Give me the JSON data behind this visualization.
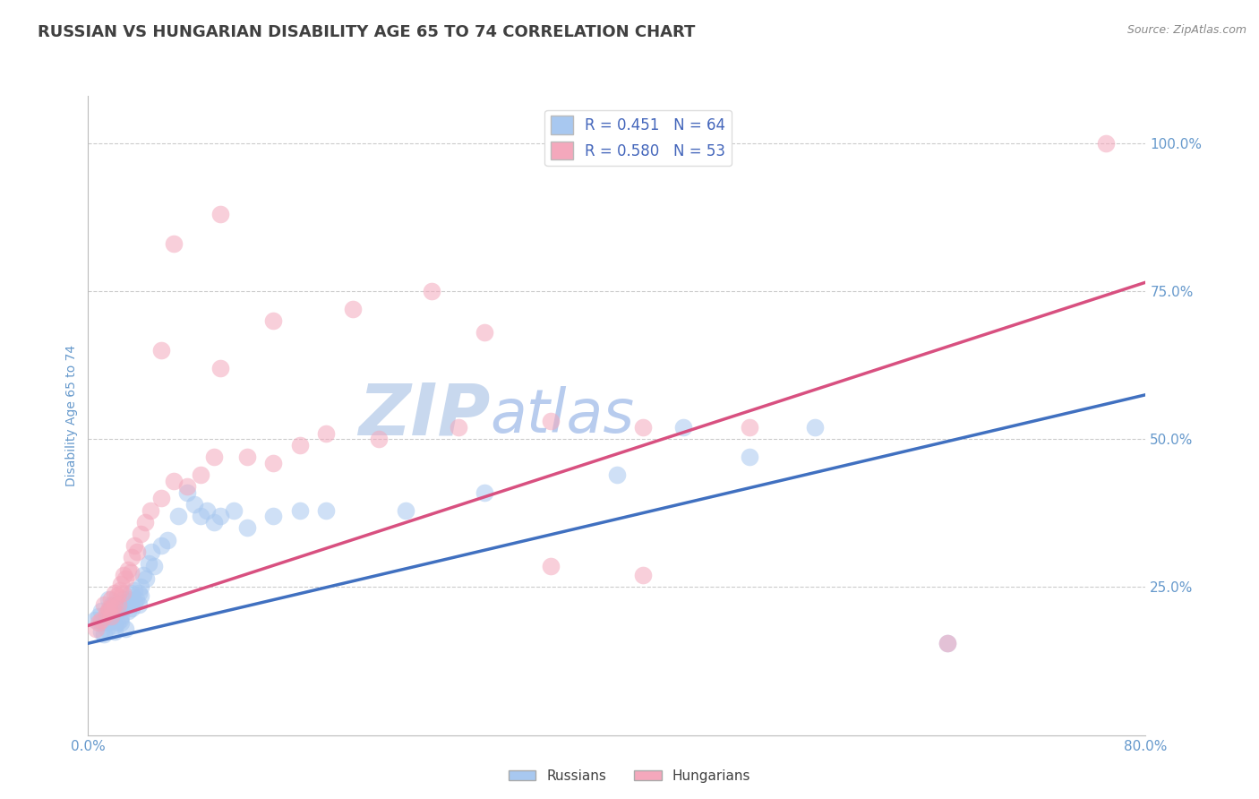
{
  "title": "RUSSIAN VS HUNGARIAN DISABILITY AGE 65 TO 74 CORRELATION CHART",
  "source_text": "Source: ZipAtlas.com",
  "ylabel_label": "Disability Age 65 to 74",
  "ylabel_ticks": [
    0.0,
    0.25,
    0.5,
    0.75,
    1.0
  ],
  "ylabel_tick_labels": [
    "",
    "25.0%",
    "50.0%",
    "75.0%",
    "100.0%"
  ],
  "xlim": [
    0.0,
    0.8
  ],
  "ylim": [
    0.12,
    1.08
  ],
  "russian_R": 0.451,
  "russian_N": 64,
  "hungarian_R": 0.58,
  "hungarian_N": 53,
  "russian_color": "#A8C8F0",
  "hungarian_color": "#F4A8BC",
  "russian_line_color": "#4070C0",
  "hungarian_line_color": "#D85080",
  "legend_R_color": "#4466BB",
  "watermark_zip": "ZIP",
  "watermark_atlas": "atlas",
  "watermark_color_zip": "#C8D8EE",
  "watermark_color_atlas": "#B8CCE8",
  "background_color": "#FFFFFF",
  "grid_color": "#CCCCCC",
  "title_color": "#404040",
  "axis_label_color": "#6699CC",
  "russians_scatter": [
    [
      0.005,
      0.195
    ],
    [
      0.008,
      0.2
    ],
    [
      0.01,
      0.175
    ],
    [
      0.01,
      0.19
    ],
    [
      0.01,
      0.21
    ],
    [
      0.012,
      0.17
    ],
    [
      0.014,
      0.18
    ],
    [
      0.015,
      0.19
    ],
    [
      0.015,
      0.21
    ],
    [
      0.015,
      0.23
    ],
    [
      0.017,
      0.195
    ],
    [
      0.018,
      0.2
    ],
    [
      0.018,
      0.22
    ],
    [
      0.02,
      0.175
    ],
    [
      0.02,
      0.185
    ],
    [
      0.02,
      0.2
    ],
    [
      0.022,
      0.19
    ],
    [
      0.022,
      0.21
    ],
    [
      0.023,
      0.22
    ],
    [
      0.024,
      0.195
    ],
    [
      0.025,
      0.19
    ],
    [
      0.025,
      0.2
    ],
    [
      0.026,
      0.215
    ],
    [
      0.027,
      0.23
    ],
    [
      0.028,
      0.18
    ],
    [
      0.028,
      0.225
    ],
    [
      0.03,
      0.21
    ],
    [
      0.03,
      0.23
    ],
    [
      0.032,
      0.22
    ],
    [
      0.032,
      0.24
    ],
    [
      0.033,
      0.215
    ],
    [
      0.035,
      0.225
    ],
    [
      0.035,
      0.245
    ],
    [
      0.036,
      0.23
    ],
    [
      0.038,
      0.22
    ],
    [
      0.038,
      0.24
    ],
    [
      0.04,
      0.235
    ],
    [
      0.04,
      0.25
    ],
    [
      0.042,
      0.27
    ],
    [
      0.044,
      0.265
    ],
    [
      0.046,
      0.29
    ],
    [
      0.048,
      0.31
    ],
    [
      0.05,
      0.285
    ],
    [
      0.055,
      0.32
    ],
    [
      0.06,
      0.33
    ],
    [
      0.068,
      0.37
    ],
    [
      0.075,
      0.41
    ],
    [
      0.08,
      0.39
    ],
    [
      0.085,
      0.37
    ],
    [
      0.09,
      0.38
    ],
    [
      0.095,
      0.36
    ],
    [
      0.1,
      0.37
    ],
    [
      0.11,
      0.38
    ],
    [
      0.12,
      0.35
    ],
    [
      0.14,
      0.37
    ],
    [
      0.16,
      0.38
    ],
    [
      0.18,
      0.38
    ],
    [
      0.24,
      0.38
    ],
    [
      0.3,
      0.41
    ],
    [
      0.4,
      0.44
    ],
    [
      0.45,
      0.52
    ],
    [
      0.5,
      0.47
    ],
    [
      0.55,
      0.52
    ],
    [
      0.65,
      0.155
    ]
  ],
  "hungarians_scatter": [
    [
      0.006,
      0.18
    ],
    [
      0.008,
      0.19
    ],
    [
      0.01,
      0.195
    ],
    [
      0.012,
      0.22
    ],
    [
      0.014,
      0.205
    ],
    [
      0.015,
      0.21
    ],
    [
      0.016,
      0.215
    ],
    [
      0.017,
      0.2
    ],
    [
      0.017,
      0.23
    ],
    [
      0.018,
      0.215
    ],
    [
      0.02,
      0.22
    ],
    [
      0.02,
      0.24
    ],
    [
      0.022,
      0.235
    ],
    [
      0.023,
      0.22
    ],
    [
      0.024,
      0.245
    ],
    [
      0.025,
      0.255
    ],
    [
      0.026,
      0.24
    ],
    [
      0.027,
      0.27
    ],
    [
      0.028,
      0.265
    ],
    [
      0.03,
      0.28
    ],
    [
      0.032,
      0.275
    ],
    [
      0.033,
      0.3
    ],
    [
      0.035,
      0.32
    ],
    [
      0.037,
      0.31
    ],
    [
      0.04,
      0.34
    ],
    [
      0.043,
      0.36
    ],
    [
      0.047,
      0.38
    ],
    [
      0.055,
      0.4
    ],
    [
      0.065,
      0.43
    ],
    [
      0.075,
      0.42
    ],
    [
      0.085,
      0.44
    ],
    [
      0.095,
      0.47
    ],
    [
      0.12,
      0.47
    ],
    [
      0.14,
      0.46
    ],
    [
      0.16,
      0.49
    ],
    [
      0.18,
      0.51
    ],
    [
      0.22,
      0.5
    ],
    [
      0.28,
      0.52
    ],
    [
      0.35,
      0.53
    ],
    [
      0.42,
      0.52
    ],
    [
      0.5,
      0.52
    ],
    [
      0.35,
      0.285
    ],
    [
      0.42,
      0.27
    ],
    [
      0.055,
      0.65
    ],
    [
      0.1,
      0.62
    ],
    [
      0.14,
      0.7
    ],
    [
      0.2,
      0.72
    ],
    [
      0.26,
      0.75
    ],
    [
      0.3,
      0.68
    ],
    [
      0.065,
      0.83
    ],
    [
      0.1,
      0.88
    ],
    [
      0.77,
      1.0
    ],
    [
      0.65,
      0.155
    ]
  ],
  "russian_reg_line": [
    [
      0.0,
      0.155
    ],
    [
      0.8,
      0.575
    ]
  ],
  "hungarian_reg_line": [
    [
      0.0,
      0.185
    ],
    [
      0.8,
      0.765
    ]
  ]
}
